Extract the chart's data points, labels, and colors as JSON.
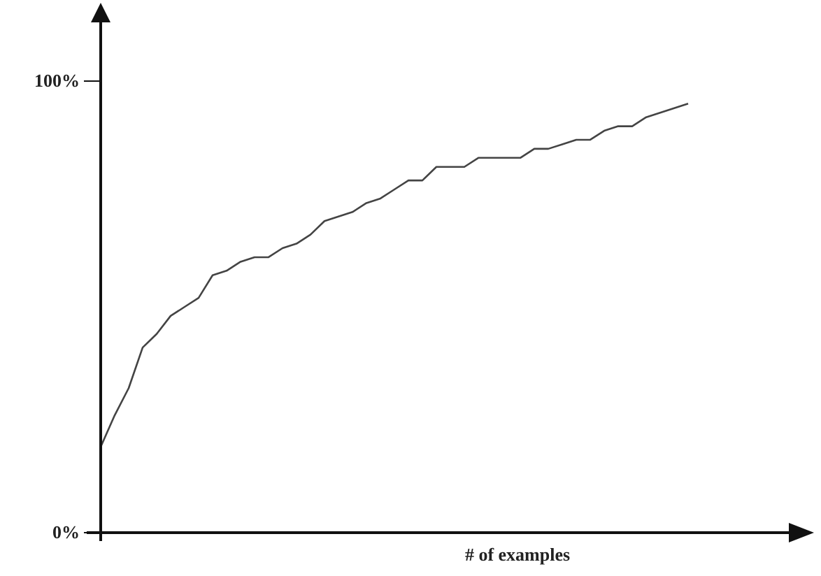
{
  "chart_data": {
    "type": "line",
    "xlabel": "# of examples",
    "categories": [
      null,
      null,
      null,
      null,
      null,
      null,
      null,
      null,
      null,
      null,
      null,
      null,
      null,
      null,
      null,
      null,
      null,
      null,
      null,
      null,
      null,
      null,
      null,
      null,
      null,
      null,
      null,
      null,
      null,
      null,
      null,
      null,
      null,
      null,
      null,
      null,
      null,
      null,
      null,
      null,
      null,
      null,
      null,
      null,
      null,
      null,
      null,
      null,
      null,
      null,
      null
    ],
    "values": [
      19,
      26,
      32,
      41,
      44,
      48,
      50,
      52,
      57,
      58,
      60,
      61,
      61,
      63,
      64,
      66,
      69,
      70,
      71,
      73,
      74,
      76,
      78,
      78,
      81,
      81,
      81,
      83,
      83,
      83,
      83,
      85,
      85,
      86,
      87,
      87,
      89,
      90,
      90,
      92,
      93,
      94,
      95,
      null,
      null,
      null,
      null,
      null,
      null,
      null,
      null
    ],
    "color": "#444444",
    "ylim": [
      0,
      113
    ],
    "yticks": [
      {
        "value": 0,
        "label": "0%"
      },
      {
        "value": 100,
        "label": "100%"
      }
    ],
    "tick_labels": "y"
  }
}
